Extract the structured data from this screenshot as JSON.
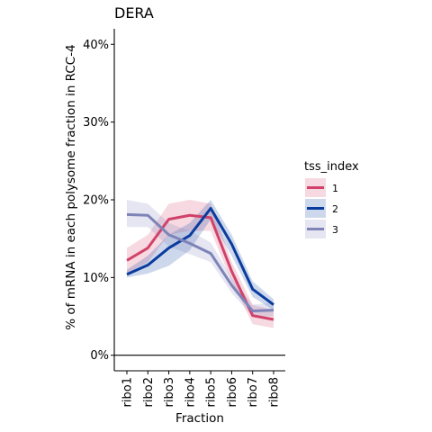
{
  "chart_data": {
    "type": "line",
    "title": "DERA",
    "xlabel": "Fraction",
    "ylabel": "% of mRNA in each polysome fraction in RCC-4",
    "categories": [
      "ribo1",
      "ribo2",
      "ribo3",
      "ribo4",
      "ribo5",
      "ribo6",
      "ribo7",
      "ribo8"
    ],
    "ylim": [
      -2,
      42
    ],
    "yticks": [
      0,
      10,
      20,
      30,
      40
    ],
    "ytick_labels": [
      "0%",
      "10%",
      "20%",
      "30%",
      "40%"
    ],
    "grid": false,
    "legend": {
      "title": "tss_index",
      "position": "right"
    },
    "series": [
      {
        "name": "1",
        "color": "#d1426a",
        "values": [
          12.2,
          13.8,
          17.5,
          18.0,
          17.7,
          10.8,
          5.1,
          4.6
        ],
        "lower": [
          10.5,
          12.0,
          15.5,
          16.0,
          16.0,
          9.5,
          4.0,
          3.5
        ],
        "upper": [
          13.8,
          15.5,
          19.5,
          20.0,
          19.5,
          12.0,
          6.5,
          5.8
        ]
      },
      {
        "name": "2",
        "color": "#0a3c9e",
        "values": [
          10.4,
          11.6,
          13.8,
          15.4,
          18.9,
          14.3,
          8.5,
          6.5
        ],
        "lower": [
          10.0,
          10.5,
          11.5,
          13.5,
          17.5,
          12.8,
          7.5,
          5.8
        ],
        "upper": [
          11.0,
          12.8,
          15.5,
          17.0,
          20.0,
          15.5,
          9.5,
          7.2
        ]
      },
      {
        "name": "3",
        "color": "#7e83b8",
        "values": [
          18.1,
          18.0,
          15.5,
          14.4,
          13.1,
          9.0,
          5.7,
          5.8
        ],
        "lower": [
          16.5,
          16.5,
          14.0,
          13.0,
          12.0,
          8.0,
          5.0,
          5.0
        ],
        "upper": [
          20.0,
          19.5,
          17.0,
          16.0,
          14.5,
          10.0,
          6.5,
          6.8
        ]
      }
    ]
  }
}
